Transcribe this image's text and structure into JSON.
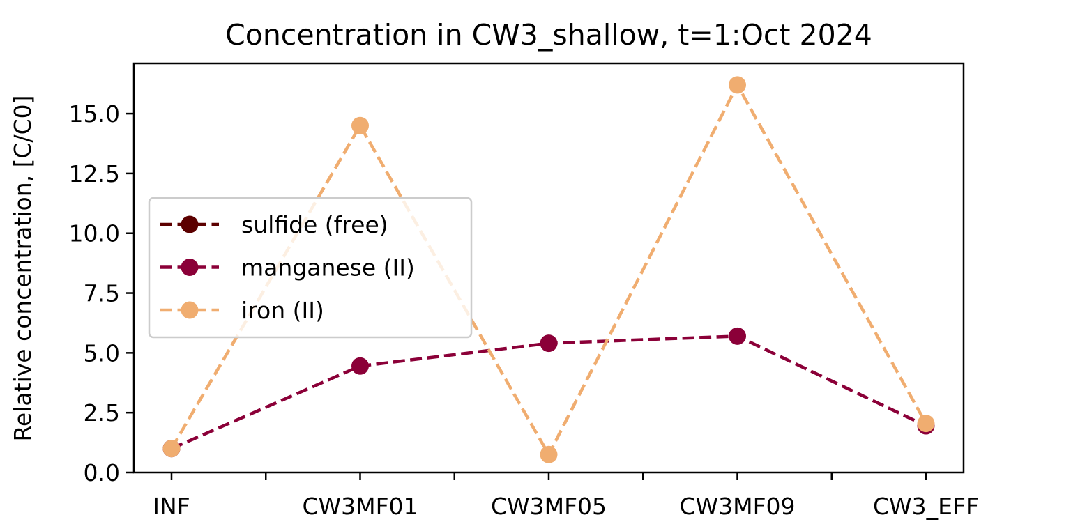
{
  "chart_data": {
    "type": "line",
    "title": "Concentration in CW3_shallow, t=1:Oct 2024",
    "xlabel": "",
    "ylabel": "Relative concentration, [C/C0]",
    "categories": [
      "INF",
      "CW3MF01",
      "CW3MF05",
      "CW3MF09",
      "CW3_EFF"
    ],
    "x_minor_ticks": 4,
    "ylim": [
      0,
      17.1
    ],
    "y_ticks": [
      0.0,
      2.5,
      5.0,
      7.5,
      10.0,
      12.5,
      15.0
    ],
    "y_tick_labels": [
      "0.0",
      "2.5",
      "5.0",
      "7.5",
      "10.0",
      "12.5",
      "15.0"
    ],
    "grid": false,
    "legend_position": "center-left",
    "series": [
      {
        "name": "sulfide (free)",
        "color": "#5c0000",
        "line_style": "dashed",
        "marker": "circle",
        "values": [
          1.0,
          null,
          null,
          null,
          null
        ]
      },
      {
        "name": "manganese (II)",
        "color": "#8b0038",
        "line_style": "dashed",
        "marker": "circle",
        "values": [
          1.0,
          4.45,
          5.4,
          5.7,
          1.95
        ]
      },
      {
        "name": "iron (II)",
        "color": "#f0ad70",
        "line_style": "dashed",
        "marker": "circle",
        "values": [
          1.0,
          14.5,
          0.75,
          16.2,
          2.05
        ]
      }
    ]
  }
}
